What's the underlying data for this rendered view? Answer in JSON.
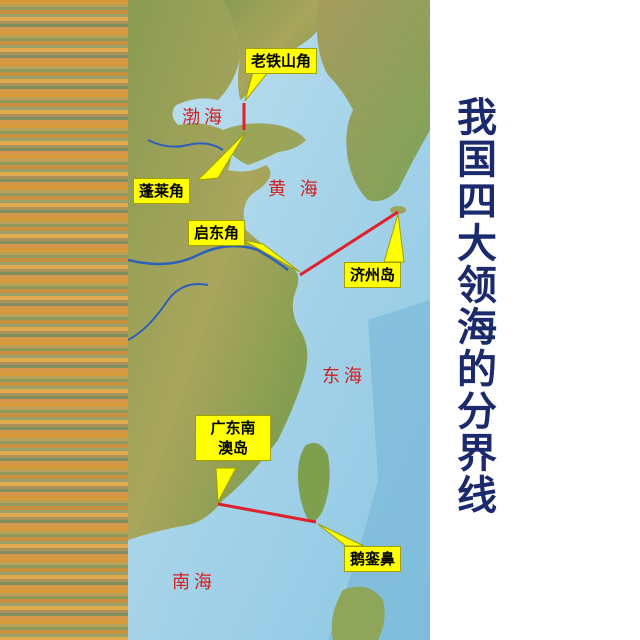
{
  "title": "我国四大领海的分界线",
  "seas": {
    "bohai": "渤海",
    "huanghai": "黄 海",
    "donghai": "东海",
    "nanhai": "南海"
  },
  "points": {
    "laotieshan": "老铁山角",
    "penglai": "蓬莱角",
    "qidong": "启东角",
    "jeju": "济州岛",
    "nanao_line1": "广东南",
    "nanao_line2": "澳岛",
    "eluanbi": "鹅銮鼻"
  },
  "colors": {
    "boundary_line": "#e0202a",
    "callout_fill": "#ffff00",
    "sea_label": "#d02020",
    "title_text": "#1a2a6c"
  }
}
